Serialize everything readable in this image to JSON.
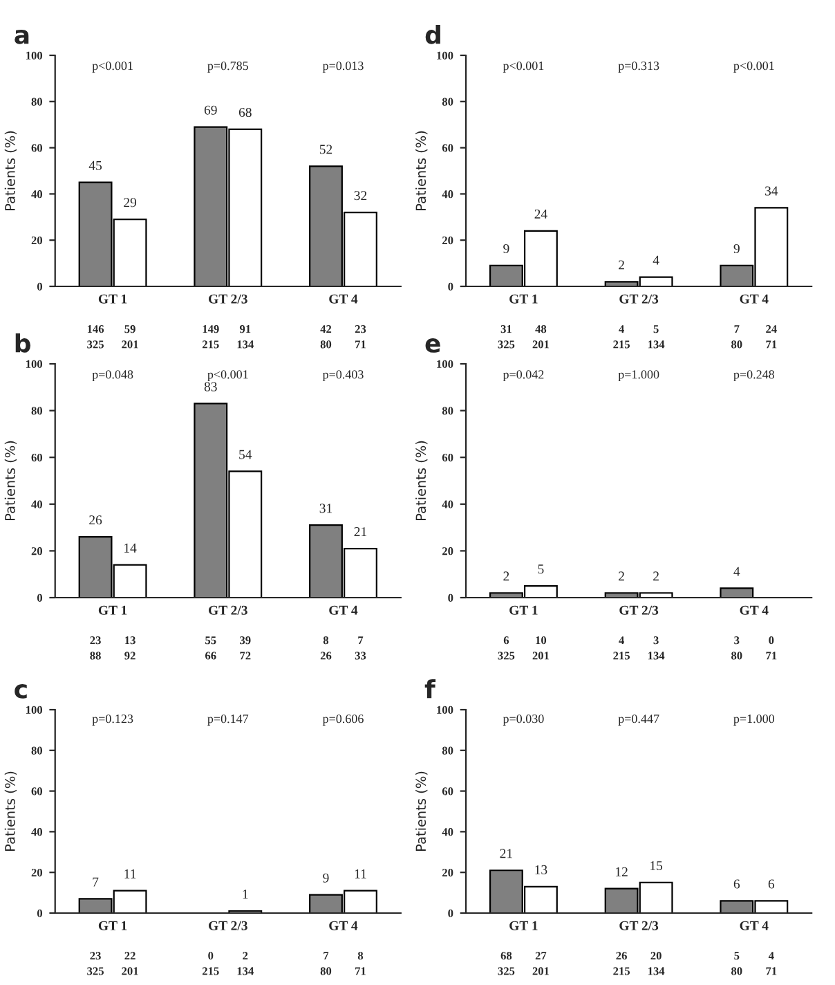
{
  "chart_data": [
    {
      "type": "bar",
      "title": "a",
      "ylabel": "Patients (%)",
      "categories": [
        "GT 1",
        "GT 2/3",
        "GT 4"
      ],
      "ylim": [
        0,
        100
      ],
      "yticks": [
        0,
        20,
        40,
        60,
        80,
        100
      ],
      "grid": false,
      "legend": false,
      "series": [
        {
          "color": "#808080",
          "values": [
            45,
            69,
            52
          ],
          "value_labels": [
            "45",
            "69",
            "52"
          ]
        },
        {
          "color": "#ffffff",
          "values": [
            29,
            68,
            32
          ],
          "value_labels": [
            "29",
            "68",
            "32"
          ]
        }
      ],
      "annotations": [
        "p<0.001",
        "p=0.785",
        "p=0.013",
        "146",
        "325",
        "59",
        "201",
        "149",
        "215",
        "91",
        "134",
        "42",
        "80",
        "23",
        "71"
      ]
    },
    {
      "type": "bar",
      "title": "d",
      "ylabel": "Patients (%)",
      "categories": [
        "GT 1",
        "GT 2/3",
        "GT 4"
      ],
      "ylim": [
        0,
        100
      ],
      "yticks": [
        0,
        20,
        40,
        60,
        80,
        100
      ],
      "grid": false,
      "legend": false,
      "series": [
        {
          "color": "#808080",
          "values": [
            9,
            2,
            9
          ],
          "value_labels": [
            "9",
            "2",
            "9"
          ]
        },
        {
          "color": "#ffffff",
          "values": [
            24,
            4,
            34
          ],
          "value_labels": [
            "24",
            "4",
            "34"
          ]
        }
      ],
      "annotations": [
        "p<0.001",
        "p=0.313",
        "p<0.001",
        "31",
        "325",
        "48",
        "201",
        "4",
        "215",
        "5",
        "134",
        "7",
        "80",
        "24",
        "71"
      ]
    },
    {
      "type": "bar",
      "title": "b",
      "ylabel": "Patients (%)",
      "categories": [
        "GT 1",
        "GT 2/3",
        "GT 4"
      ],
      "ylim": [
        0,
        100
      ],
      "yticks": [
        0,
        20,
        40,
        60,
        80,
        100
      ],
      "grid": false,
      "legend": false,
      "series": [
        {
          "color": "#808080",
          "values": [
            26,
            83,
            31
          ],
          "value_labels": [
            "26",
            "83",
            "31"
          ]
        },
        {
          "color": "#ffffff",
          "values": [
            14,
            54,
            21
          ],
          "value_labels": [
            "14",
            "54",
            "21"
          ]
        }
      ],
      "annotations": [
        "p=0.048",
        "p<0.001",
        "p=0.403",
        "23",
        "88",
        "13",
        "92",
        "55",
        "66",
        "39",
        "72",
        "8",
        "26",
        "7",
        "33"
      ]
    },
    {
      "type": "bar",
      "title": "e",
      "ylabel": "Patients (%)",
      "categories": [
        "GT 1",
        "GT 2/3",
        "GT 4"
      ],
      "ylim": [
        0,
        100
      ],
      "yticks": [
        0,
        20,
        40,
        60,
        80,
        100
      ],
      "grid": false,
      "legend": false,
      "series": [
        {
          "color": "#808080",
          "values": [
            2,
            2,
            4
          ],
          "value_labels": [
            "2",
            "2",
            "4"
          ]
        },
        {
          "color": "#ffffff",
          "values": [
            5,
            2,
            0
          ],
          "value_labels": [
            "5",
            "2",
            null
          ]
        }
      ],
      "annotations": [
        "p=0.042",
        "p=1.000",
        "p=0.248",
        "6",
        "325",
        "10",
        "201",
        "4",
        "215",
        "3",
        "134",
        "3",
        "80",
        "0",
        "71"
      ]
    },
    {
      "type": "bar",
      "title": "c",
      "ylabel": "Patients (%)",
      "categories": [
        "GT 1",
        "GT 2/3",
        "GT 4"
      ],
      "ylim": [
        0,
        100
      ],
      "yticks": [
        0,
        20,
        40,
        60,
        80,
        100
      ],
      "grid": false,
      "legend": false,
      "series": [
        {
          "color": "#808080",
          "values": [
            7,
            0,
            9
          ],
          "value_labels": [
            "7",
            null,
            "9"
          ]
        },
        {
          "color": "#ffffff",
          "values": [
            11,
            1,
            11
          ],
          "value_labels": [
            "11",
            "1",
            "11"
          ]
        }
      ],
      "annotations": [
        "p=0.123",
        "p=0.147",
        "p=0.606",
        "23",
        "325",
        "22",
        "201",
        "0",
        "215",
        "2",
        "134",
        "7",
        "80",
        "8",
        "71"
      ]
    },
    {
      "type": "bar",
      "title": "f",
      "ylabel": "Patients (%)",
      "categories": [
        "GT 1",
        "GT 2/3",
        "GT 4"
      ],
      "ylim": [
        0,
        100
      ],
      "yticks": [
        0,
        20,
        40,
        60,
        80,
        100
      ],
      "grid": false,
      "legend": false,
      "series": [
        {
          "color": "#808080",
          "values": [
            21,
            12,
            6
          ],
          "value_labels": [
            "21",
            "12",
            "6"
          ]
        },
        {
          "color": "#ffffff",
          "values": [
            13,
            15,
            6
          ],
          "value_labels": [
            "13",
            "15",
            "6"
          ]
        }
      ],
      "annotations": [
        "p=0.030",
        "p=0.447",
        "p=1.000",
        "68",
        "325",
        "27",
        "201",
        "26",
        "215",
        "20",
        "134",
        "5",
        "80",
        "4",
        "71"
      ]
    }
  ]
}
